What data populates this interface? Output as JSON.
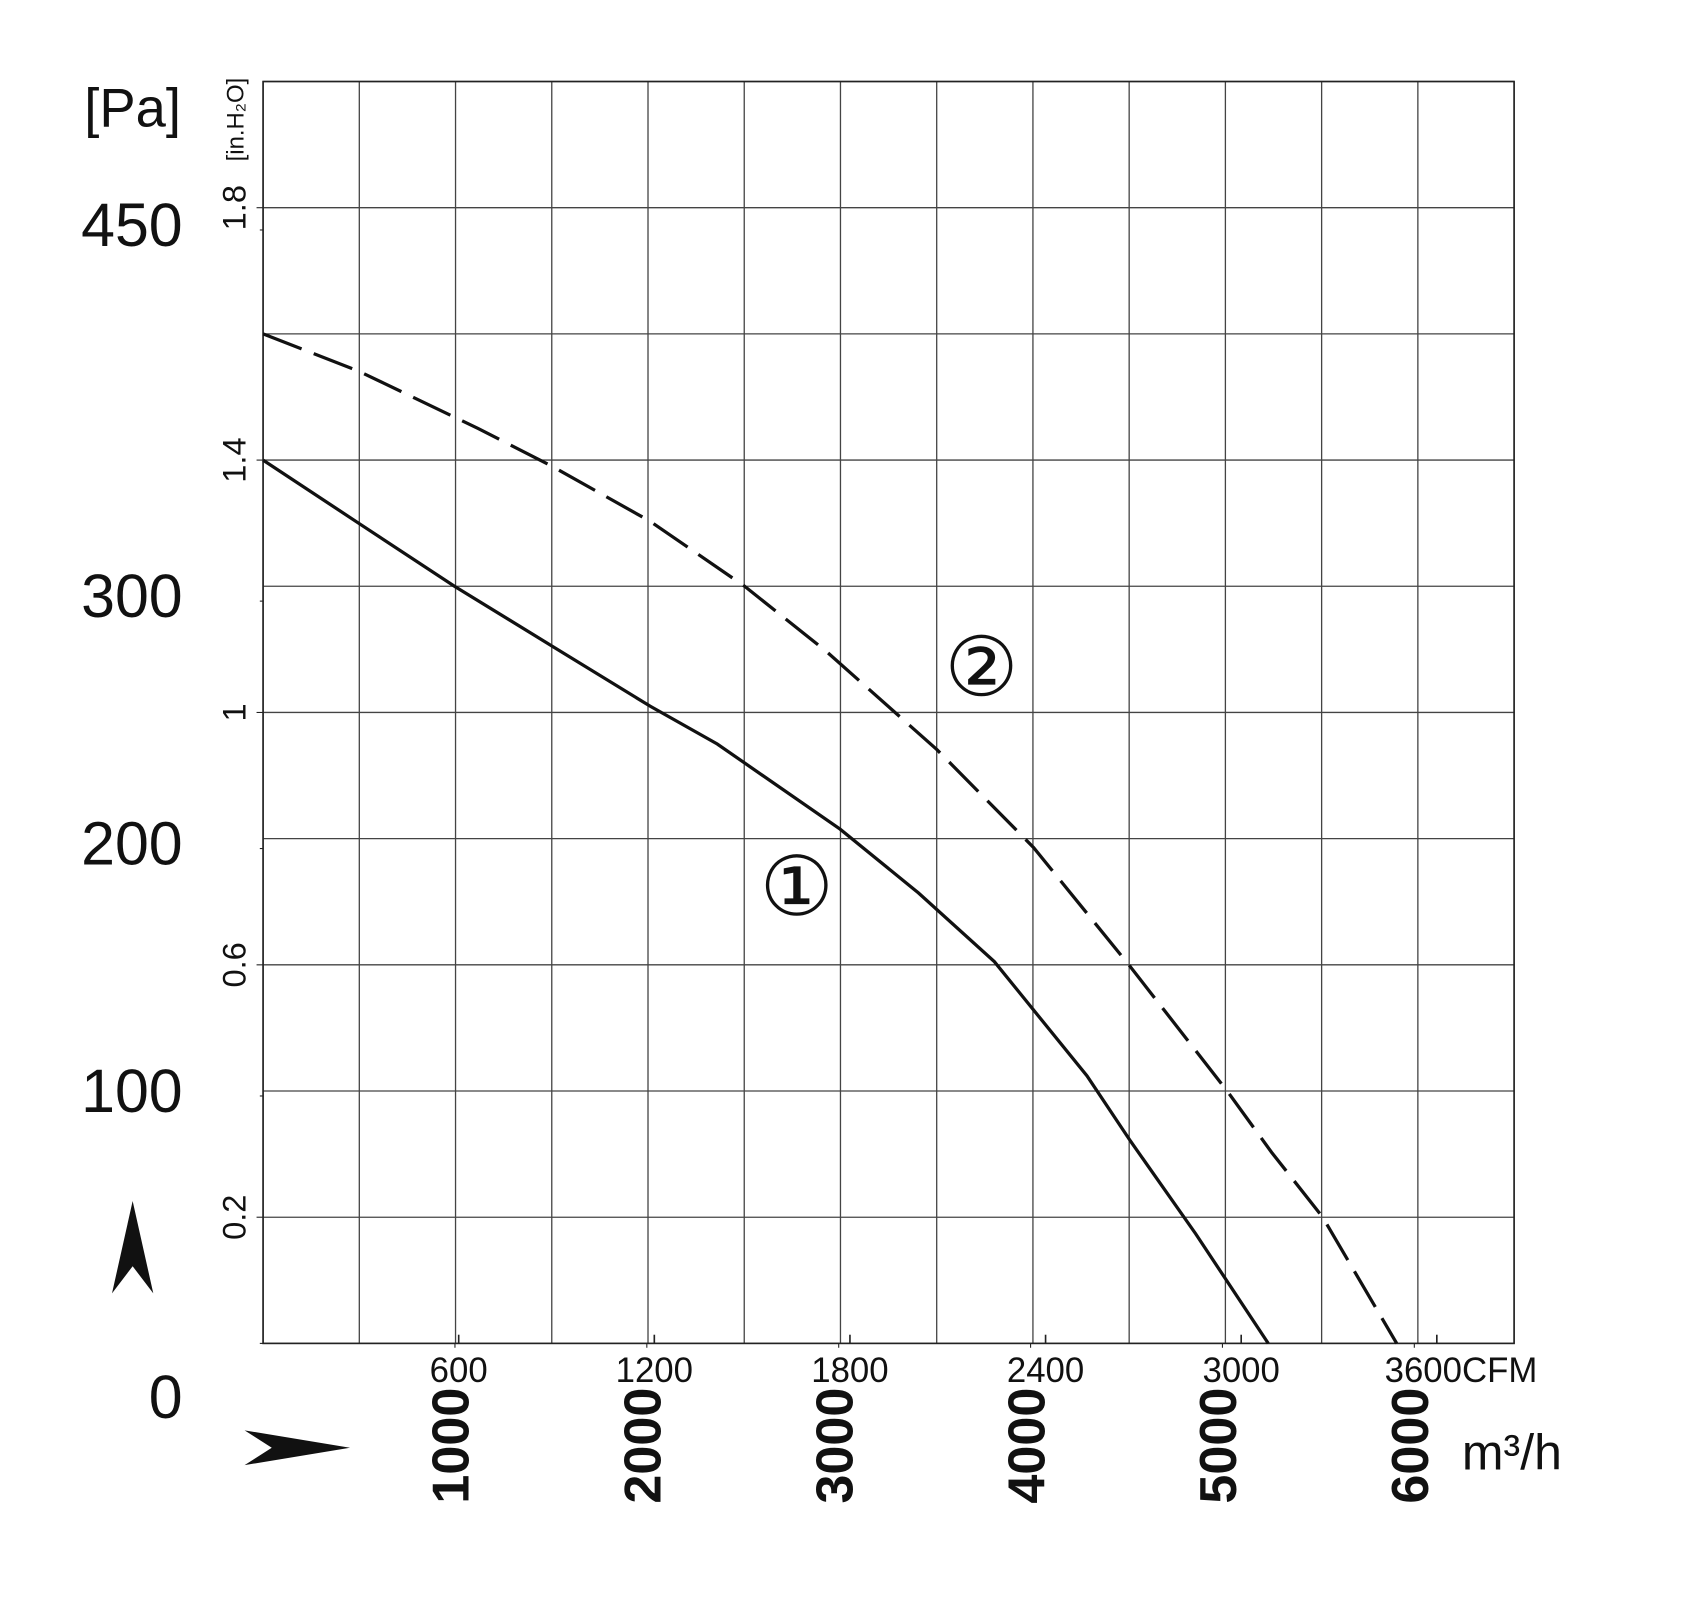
{
  "chart_data": {
    "type": "line",
    "ylabel": "[in.H₂O]",
    "y2label": "[Pa]",
    "x2label": "m³/h",
    "xlim": [
      0,
      3837
    ],
    "xticks": [
      600,
      1200,
      1800,
      2400,
      3000,
      {
        "value": 3600,
        "label": "3600CFM"
      }
    ],
    "x2lim": [
      0,
      6520
    ],
    "x2ticks": [
      1000,
      2000,
      3000,
      4000,
      5000,
      6000
    ],
    "ylim": [
      0,
      2.0
    ],
    "yticks": [
      0.2,
      0.6,
      1.0,
      1.4,
      1.8
    ],
    "y2lim": [
      0,
      510
    ],
    "y2ticks": [
      0,
      100,
      200,
      300,
      450
    ],
    "grid": true,
    "series": [
      {
        "name": "①",
        "color": "#111111",
        "line_style": "solid",
        "x": [
          0,
          293,
          587,
          887,
          1187,
          1393,
          1770,
          2010,
          2243,
          2527,
          2660,
          2860,
          3083
        ],
        "values": [
          1.4,
          1.3,
          1.2,
          1.105,
          1.01,
          0.95,
          0.815,
          0.714,
          0.605,
          0.424,
          0.321,
          0.174,
          0
        ]
      },
      {
        "name": "②",
        "color": "#111111",
        "line_style": "dashed",
        "x": [
          0,
          293,
          660,
          887,
          1187,
          1477,
          1727,
          2067,
          2363,
          2660,
          2957,
          3093,
          3250,
          3477
        ],
        "values": [
          1.6,
          1.541,
          1.45,
          1.39,
          1.303,
          1.2,
          1.097,
          0.941,
          0.786,
          0.597,
          0.4,
          0.303,
          0.2,
          0
        ]
      }
    ]
  }
}
